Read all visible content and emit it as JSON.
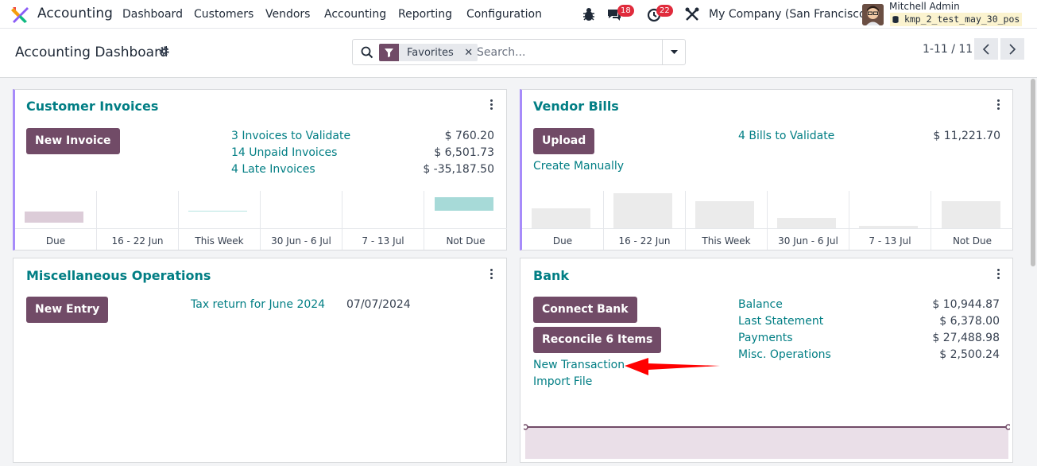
{
  "navbar": {
    "app_name": "Accounting",
    "menu": [
      "Dashboard",
      "Customers",
      "Vendors",
      "Accounting",
      "Reporting",
      "Configuration"
    ],
    "messages_count": "18",
    "activities_count": "22",
    "company": "My Company (San Francisco)",
    "user_name": "Mitchell Admin",
    "database": "kmp_2_test_may_30_pos"
  },
  "control": {
    "title": "Accounting Dashboard",
    "facet_label": "Favorites",
    "search_placeholder": "Search...",
    "pager": "1-11 / 11"
  },
  "colors": {
    "brand": "#714b67",
    "link": "#017e84",
    "badge": "#e02b3c",
    "favorite_border": "#a78bfa",
    "annotation_arrow": "#ff0000"
  },
  "customer_invoices": {
    "title": "Customer Invoices",
    "button": "New Invoice",
    "rows": [
      {
        "label": "3 Invoices to Validate",
        "amount": "$ 760.20"
      },
      {
        "label": "14 Unpaid Invoices",
        "amount": "$ 6,501.73"
      },
      {
        "label": "4 Late Invoices",
        "amount": "$ -35,187.50"
      }
    ],
    "graph_labels": [
      "Due",
      "16 - 22 Jun",
      "This Week",
      "30 Jun - 6 Jul",
      "7 - 13 Jul",
      "Not Due"
    ]
  },
  "vendor_bills": {
    "title": "Vendor Bills",
    "button": "Upload",
    "create_link": "Create Manually",
    "rows": [
      {
        "label": "4 Bills to Validate",
        "amount": "$ 11,221.70"
      }
    ],
    "graph_labels": [
      "Due",
      "16 - 22 Jun",
      "This Week",
      "30 Jun - 6 Jul",
      "7 - 13 Jul",
      "Not Due"
    ]
  },
  "misc_operations": {
    "title": "Miscellaneous Operations",
    "button": "New Entry",
    "entry_label": "Tax return for June 2024",
    "entry_date": "07/07/2024"
  },
  "bank": {
    "title": "Bank",
    "connect_button": "Connect Bank",
    "reconcile_button": "Reconcile 6 Items",
    "new_transaction": "New Transaction",
    "import_file": "Import File",
    "rows": [
      {
        "label": "Balance",
        "amount": "$ 10,944.87"
      },
      {
        "label": "Last Statement",
        "amount": "$ 6,378.00"
      },
      {
        "label": "Payments",
        "amount": "$ 27,488.98"
      },
      {
        "label": "Misc. Operations",
        "amount": "$ 2,500.24"
      }
    ]
  }
}
